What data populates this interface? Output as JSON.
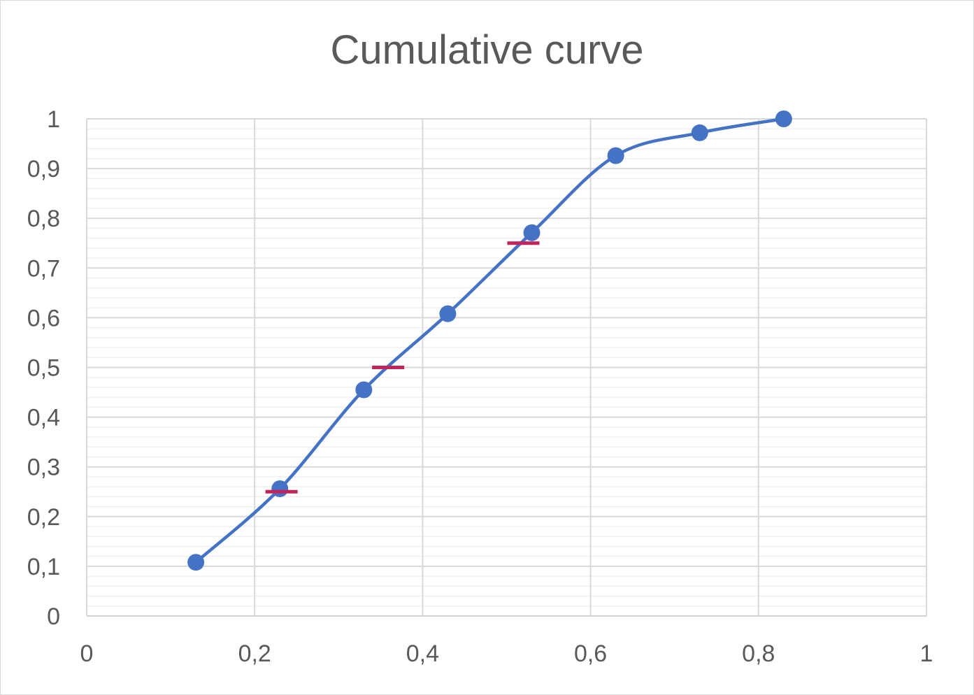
{
  "chart_data": {
    "type": "line",
    "title": "Cumulative curve",
    "xlabel": "",
    "ylabel": "",
    "xlim": [
      0,
      1
    ],
    "ylim": [
      0,
      1
    ],
    "x_ticks": [
      "0",
      "0,2",
      "0,4",
      "0,6",
      "0,8",
      "1"
    ],
    "y_ticks": [
      "0",
      "0,1",
      "0,2",
      "0,3",
      "0,4",
      "0,5",
      "0,6",
      "0,7",
      "0,8",
      "0,9",
      "1"
    ],
    "grid": {
      "major": true,
      "minor_horizontal": true
    },
    "legend": "none",
    "smooth": true,
    "series": [
      {
        "color": "#4472c4",
        "marker": "circle",
        "x": [
          0.13,
          0.23,
          0.33,
          0.43,
          0.53,
          0.63,
          0.73,
          0.83
        ],
        "y": [
          0.108,
          0.256,
          0.455,
          0.608,
          0.771,
          0.926,
          0.972,
          1.0
        ]
      }
    ],
    "markers": {
      "color": "#c0245a",
      "type": "dash",
      "points": [
        {
          "x": 0.232,
          "y": 0.25
        },
        {
          "x": 0.359,
          "y": 0.5
        },
        {
          "x": 0.52,
          "y": 0.75
        }
      ]
    }
  }
}
